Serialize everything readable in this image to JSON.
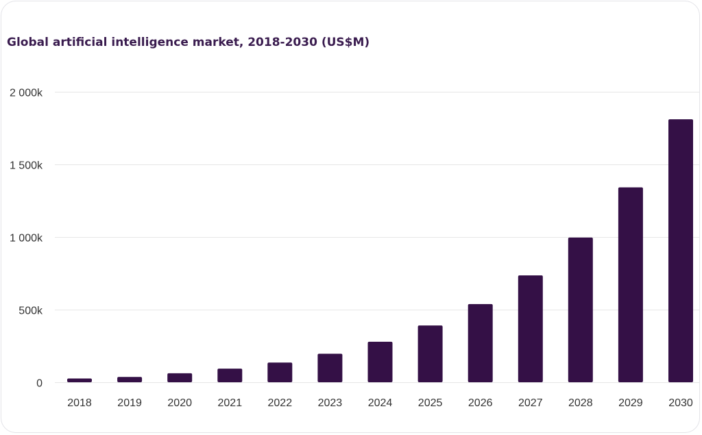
{
  "colors": {
    "bar": "#341046",
    "title": "#3a1c4f",
    "grid": "#e6e6e6",
    "axis_text": "#333333"
  },
  "chart_data": {
    "type": "bar",
    "title": "Global artificial intelligence market, 2018-2030 (US$M)",
    "xlabel": "",
    "ylabel": "",
    "categories": [
      "2018",
      "2019",
      "2020",
      "2021",
      "2022",
      "2023",
      "2024",
      "2025",
      "2026",
      "2027",
      "2028",
      "2029",
      "2030"
    ],
    "values": [
      26000,
      37000,
      62000,
      94000,
      136000,
      196000,
      279000,
      391000,
      538000,
      736000,
      996000,
      1342000,
      1811000
    ],
    "ylim": [
      0,
      2000000
    ],
    "yticks": [
      0,
      500000,
      1000000,
      1500000,
      2000000
    ],
    "ytick_labels": [
      "0",
      "500k",
      "1 000k",
      "1 500k",
      "2 000k"
    ],
    "grid": true
  }
}
